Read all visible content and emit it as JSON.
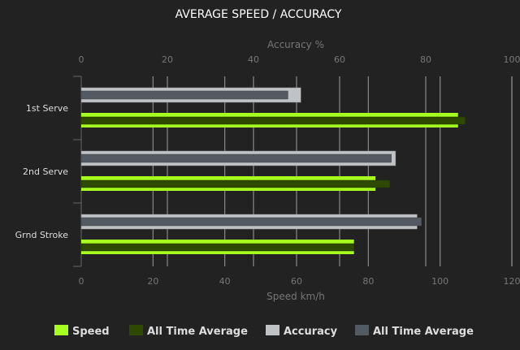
{
  "chart_data": {
    "type": "bar",
    "orientation": "horizontal",
    "title": "AVERAGE SPEED / ACCURACY",
    "categories": [
      "1st Serve",
      "2nd Serve",
      "Grnd Stroke"
    ],
    "top_axis": {
      "label": "Accuracy %",
      "range": [
        0,
        100
      ],
      "ticks": [
        0,
        20,
        40,
        60,
        80,
        100
      ]
    },
    "bottom_axis": {
      "label": "Speed km/h",
      "range": [
        0,
        120
      ],
      "ticks": [
        0,
        20,
        40,
        60,
        80,
        100,
        120
      ]
    },
    "grid": true,
    "legend_position": "bottom",
    "series": [
      {
        "name": "Speed",
        "axis": "bottom",
        "color": "#a6ff1e",
        "values": [
          105,
          82,
          76
        ]
      },
      {
        "name": "All Time Average",
        "axis": "bottom",
        "color": "#2e4a00",
        "values": [
          107,
          86,
          76
        ]
      },
      {
        "name": "Accuracy",
        "axis": "top",
        "color": "#bfc3c5",
        "values": [
          51,
          73,
          78
        ]
      },
      {
        "name": "All Time Average",
        "axis": "top",
        "color": "#545a61",
        "values": [
          48,
          72,
          79
        ]
      }
    ]
  }
}
